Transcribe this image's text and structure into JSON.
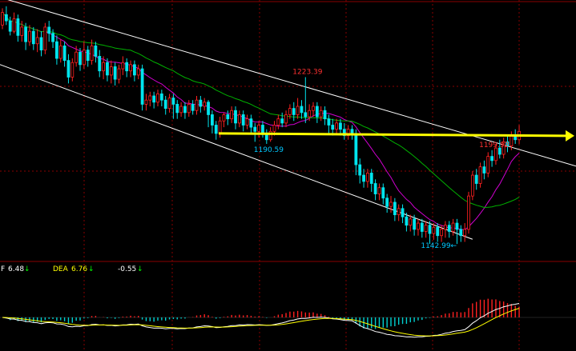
{
  "colors": {
    "background": "#000000",
    "grid": "#8a0000",
    "up_candle": "#ff2020",
    "down_candle": "#00e5ee",
    "ma_short": "#d000d0",
    "ma_long": "#00b000",
    "channel": "#ffffff",
    "horizontal_line": "#ffff00",
    "label_high": "#ff3030",
    "label_low": "#00c8ff",
    "macd_dif": "#ffffff",
    "macd_dea": "#ffff00",
    "macd_pos": "#ff2020",
    "macd_neg": "#00d0d0"
  },
  "macd_header": {
    "dif_prefix": "F",
    "dif_value": "6.48",
    "dif_arrow": "↓",
    "dea_label": "DEA",
    "dea_value": "6.76",
    "dea_arrow": "↓",
    "macd_value": "-0.55",
    "macd_arrow": "↓"
  },
  "chart_data": {
    "type": "candlestick",
    "ylim": [
      1135,
      1260
    ],
    "annotations": [
      {
        "text": "1223.39",
        "kind": "high",
        "index": 78
      },
      {
        "text": "1190.59",
        "kind": "low",
        "index": 68
      },
      {
        "text": "1142.99",
        "kind": "low",
        "index": 111,
        "suffix": "←"
      },
      {
        "text": "1199.92",
        "kind": "high",
        "index": 126
      }
    ],
    "horizontal_line_value": 1196,
    "candles": [
      [
        1248,
        1254,
        1246,
        1256
      ],
      [
        1253,
        1250,
        1248,
        1257
      ],
      [
        1250,
        1245,
        1243,
        1252
      ],
      [
        1245,
        1251,
        1244,
        1254
      ],
      [
        1251,
        1243,
        1240,
        1253
      ],
      [
        1243,
        1247,
        1240,
        1250
      ],
      [
        1247,
        1240,
        1236,
        1249
      ],
      [
        1240,
        1245,
        1238,
        1248
      ],
      [
        1245,
        1239,
        1236,
        1247
      ],
      [
        1239,
        1242,
        1235,
        1246
      ],
      [
        1242,
        1236,
        1233,
        1245
      ],
      [
        1236,
        1247,
        1234,
        1249
      ],
      [
        1247,
        1244,
        1240,
        1250
      ],
      [
        1244,
        1240,
        1237,
        1246
      ],
      [
        1240,
        1232,
        1229,
        1243
      ],
      [
        1232,
        1238,
        1230,
        1241
      ],
      [
        1238,
        1231,
        1228,
        1240
      ],
      [
        1231,
        1223,
        1220,
        1234
      ],
      [
        1223,
        1230,
        1221,
        1232
      ],
      [
        1230,
        1235,
        1228,
        1238
      ],
      [
        1235,
        1229,
        1226,
        1237
      ],
      [
        1229,
        1236,
        1227,
        1240
      ],
      [
        1236,
        1231,
        1228,
        1238
      ],
      [
        1231,
        1238,
        1229,
        1241
      ],
      [
        1238,
        1233,
        1230,
        1240
      ],
      [
        1233,
        1226,
        1223,
        1236
      ],
      [
        1226,
        1230,
        1222,
        1233
      ],
      [
        1230,
        1224,
        1221,
        1232
      ],
      [
        1224,
        1228,
        1220,
        1231
      ],
      [
        1228,
        1222,
        1219,
        1230
      ],
      [
        1222,
        1227,
        1220,
        1229
      ],
      [
        1227,
        1230,
        1224,
        1233
      ],
      [
        1230,
        1226,
        1223,
        1232
      ],
      [
        1226,
        1229,
        1223,
        1231
      ],
      [
        1229,
        1224,
        1221,
        1231
      ],
      [
        1224,
        1227,
        1222,
        1229
      ],
      [
        1227,
        1210,
        1207,
        1229
      ],
      [
        1210,
        1212,
        1207,
        1215
      ],
      [
        1212,
        1214,
        1209,
        1216
      ],
      [
        1214,
        1211,
        1208,
        1216
      ],
      [
        1211,
        1215,
        1209,
        1217
      ],
      [
        1215,
        1212,
        1209,
        1217
      ],
      [
        1212,
        1208,
        1205,
        1214
      ],
      [
        1208,
        1213,
        1206,
        1215
      ],
      [
        1213,
        1210,
        1203,
        1215
      ],
      [
        1210,
        1206,
        1203,
        1212
      ],
      [
        1206,
        1209,
        1204,
        1211
      ],
      [
        1209,
        1206,
        1203,
        1211
      ],
      [
        1206,
        1210,
        1204,
        1212
      ],
      [
        1210,
        1207,
        1205,
        1212
      ],
      [
        1207,
        1212,
        1205,
        1214
      ],
      [
        1212,
        1209,
        1206,
        1214
      ],
      [
        1209,
        1211,
        1207,
        1213
      ],
      [
        1211,
        1205,
        1199,
        1212
      ],
      [
        1205,
        1200,
        1196,
        1207
      ],
      [
        1200,
        1196,
        1193,
        1202
      ],
      [
        1196,
        1202,
        1194,
        1204
      ],
      [
        1202,
        1205,
        1199,
        1206
      ],
      [
        1205,
        1203,
        1200,
        1207
      ],
      [
        1203,
        1207,
        1201,
        1209
      ],
      [
        1207,
        1201,
        1198,
        1209
      ],
      [
        1201,
        1205,
        1199,
        1207
      ],
      [
        1205,
        1200,
        1197,
        1207
      ],
      [
        1200,
        1203,
        1198,
        1205
      ],
      [
        1203,
        1199,
        1196,
        1205
      ],
      [
        1199,
        1197,
        1192,
        1201
      ],
      [
        1197,
        1200,
        1194,
        1202
      ],
      [
        1200,
        1196,
        1194,
        1202
      ],
      [
        1196,
        1193,
        1191,
        1198
      ],
      [
        1193,
        1197,
        1192,
        1199
      ],
      [
        1197,
        1200,
        1195,
        1202
      ],
      [
        1200,
        1203,
        1198,
        1205
      ],
      [
        1203,
        1201,
        1199,
        1206
      ],
      [
        1201,
        1205,
        1199,
        1207
      ],
      [
        1205,
        1208,
        1203,
        1210
      ],
      [
        1208,
        1205,
        1202,
        1211
      ],
      [
        1205,
        1209,
        1203,
        1213
      ],
      [
        1209,
        1206,
        1203,
        1212
      ],
      [
        1206,
        1204,
        1201,
        1223
      ],
      [
        1204,
        1207,
        1202,
        1210
      ],
      [
        1207,
        1209,
        1204,
        1211
      ],
      [
        1209,
        1204,
        1201,
        1211
      ],
      [
        1204,
        1207,
        1202,
        1209
      ],
      [
        1207,
        1203,
        1200,
        1209
      ],
      [
        1203,
        1200,
        1196,
        1205
      ],
      [
        1200,
        1198,
        1195,
        1203
      ],
      [
        1198,
        1201,
        1196,
        1203
      ],
      [
        1201,
        1198,
        1195,
        1203
      ],
      [
        1198,
        1195,
        1193,
        1201
      ],
      [
        1195,
        1198,
        1193,
        1200
      ],
      [
        1198,
        1196,
        1193,
        1200
      ],
      [
        1196,
        1181,
        1176,
        1198
      ],
      [
        1181,
        1176,
        1172,
        1184
      ],
      [
        1176,
        1173,
        1170,
        1179
      ],
      [
        1173,
        1177,
        1170,
        1179
      ],
      [
        1177,
        1172,
        1168,
        1179
      ],
      [
        1172,
        1167,
        1164,
        1174
      ],
      [
        1167,
        1170,
        1164,
        1172
      ],
      [
        1170,
        1165,
        1162,
        1172
      ],
      [
        1165,
        1161,
        1158,
        1167
      ],
      [
        1161,
        1163,
        1158,
        1166
      ],
      [
        1163,
        1157,
        1154,
        1165
      ],
      [
        1157,
        1160,
        1154,
        1162
      ],
      [
        1160,
        1156,
        1153,
        1162
      ],
      [
        1156,
        1152,
        1149,
        1158
      ],
      [
        1152,
        1155,
        1149,
        1157
      ],
      [
        1155,
        1150,
        1147,
        1157
      ],
      [
        1150,
        1153,
        1147,
        1155
      ],
      [
        1153,
        1149,
        1146,
        1155
      ],
      [
        1149,
        1152,
        1146,
        1154
      ],
      [
        1152,
        1148,
        1143,
        1154
      ],
      [
        1148,
        1151,
        1145,
        1153
      ],
      [
        1151,
        1147,
        1144,
        1153
      ],
      [
        1147,
        1150,
        1144,
        1152
      ],
      [
        1150,
        1152,
        1146,
        1154
      ],
      [
        1152,
        1149,
        1146,
        1154
      ],
      [
        1149,
        1153,
        1147,
        1155
      ],
      [
        1153,
        1150,
        1143,
        1155
      ],
      [
        1150,
        1147,
        1144,
        1152
      ],
      [
        1147,
        1150,
        1144,
        1153
      ],
      [
        1150,
        1166,
        1148,
        1168
      ],
      [
        1166,
        1176,
        1164,
        1178
      ],
      [
        1176,
        1172,
        1169,
        1179
      ],
      [
        1172,
        1180,
        1170,
        1182
      ],
      [
        1180,
        1177,
        1174,
        1183
      ],
      [
        1177,
        1185,
        1175,
        1187
      ],
      [
        1185,
        1183,
        1180,
        1188
      ],
      [
        1183,
        1189,
        1181,
        1191
      ],
      [
        1189,
        1186,
        1184,
        1193
      ],
      [
        1186,
        1192,
        1184,
        1194
      ],
      [
        1192,
        1190,
        1187,
        1195
      ],
      [
        1190,
        1195,
        1188,
        1197
      ],
      [
        1195,
        1193,
        1191,
        1198
      ],
      [
        1193,
        1197,
        1191,
        1200
      ]
    ]
  }
}
